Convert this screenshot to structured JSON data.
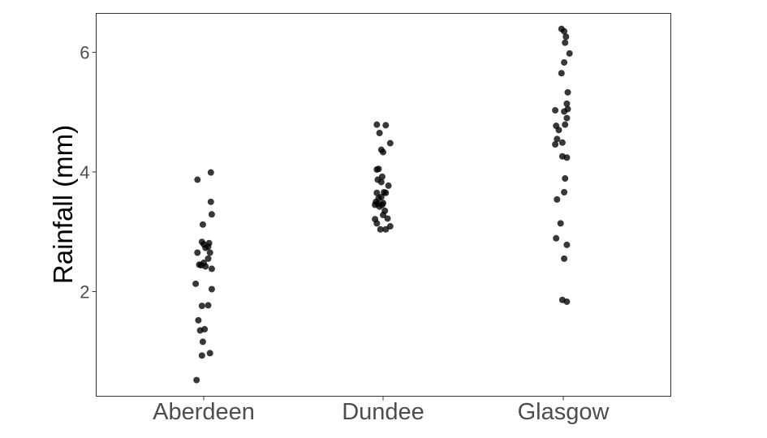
{
  "chart_data": {
    "type": "scatter",
    "title": "",
    "xlabel": "",
    "ylabel": "Rainfall (mm)",
    "ylim": [
      0.25,
      6.65
    ],
    "yticks": [
      2,
      4,
      6
    ],
    "grid": false,
    "point_color": "#000000",
    "point_opacity": 0.78,
    "categories": [
      "Aberdeen",
      "Dundee",
      "Glasgow"
    ],
    "series": [
      {
        "category": "Aberdeen",
        "points": [
          {
            "x": -0.07,
            "y": 3.87
          },
          {
            "x": 0.08,
            "y": 3.99
          },
          {
            "x": 0.08,
            "y": 3.5
          },
          {
            "x": 0.09,
            "y": 3.29
          },
          {
            "x": -0.01,
            "y": 3.12
          },
          {
            "x": -0.02,
            "y": 2.83
          },
          {
            "x": 0.0,
            "y": 2.79
          },
          {
            "x": 0.06,
            "y": 2.81
          },
          {
            "x": 0.02,
            "y": 2.73
          },
          {
            "x": 0.05,
            "y": 2.75
          },
          {
            "x": -0.07,
            "y": 2.65
          },
          {
            "x": 0.07,
            "y": 2.65
          },
          {
            "x": -0.05,
            "y": 2.45
          },
          {
            "x": -0.03,
            "y": 2.44
          },
          {
            "x": 0.0,
            "y": 2.48
          },
          {
            "x": 0.02,
            "y": 2.42
          },
          {
            "x": 0.05,
            "y": 2.55
          },
          {
            "x": 0.09,
            "y": 2.38
          },
          {
            "x": -0.09,
            "y": 2.13
          },
          {
            "x": 0.09,
            "y": 2.04
          },
          {
            "x": -0.02,
            "y": 1.76
          },
          {
            "x": 0.05,
            "y": 1.77
          },
          {
            "x": -0.06,
            "y": 1.52
          },
          {
            "x": -0.04,
            "y": 1.35
          },
          {
            "x": 0.01,
            "y": 1.37
          },
          {
            "x": -0.01,
            "y": 1.16
          },
          {
            "x": 0.07,
            "y": 0.97
          },
          {
            "x": -0.02,
            "y": 0.93
          },
          {
            "x": -0.08,
            "y": 0.52
          }
        ]
      },
      {
        "category": "Dundee",
        "points": [
          {
            "x": -0.07,
            "y": 4.79
          },
          {
            "x": 0.03,
            "y": 4.78
          },
          {
            "x": -0.04,
            "y": 4.65
          },
          {
            "x": 0.08,
            "y": 4.48
          },
          {
            "x": -0.02,
            "y": 4.37
          },
          {
            "x": 0.0,
            "y": 4.33
          },
          {
            "x": -0.07,
            "y": 4.04
          },
          {
            "x": -0.05,
            "y": 4.05
          },
          {
            "x": -0.01,
            "y": 3.92
          },
          {
            "x": -0.06,
            "y": 3.87
          },
          {
            "x": -0.02,
            "y": 3.83
          },
          {
            "x": 0.06,
            "y": 3.77
          },
          {
            "x": -0.07,
            "y": 3.65
          },
          {
            "x": 0.01,
            "y": 3.66
          },
          {
            "x": 0.03,
            "y": 3.65
          },
          {
            "x": -0.05,
            "y": 3.56
          },
          {
            "x": -0.02,
            "y": 3.58
          },
          {
            "x": -0.08,
            "y": 3.5
          },
          {
            "x": -0.06,
            "y": 3.47
          },
          {
            "x": 0.0,
            "y": 3.48
          },
          {
            "x": -0.01,
            "y": 3.45
          },
          {
            "x": -0.09,
            "y": 3.45
          },
          {
            "x": -0.04,
            "y": 3.42
          },
          {
            "x": 0.02,
            "y": 3.35
          },
          {
            "x": 0.0,
            "y": 3.28
          },
          {
            "x": -0.09,
            "y": 3.21
          },
          {
            "x": 0.05,
            "y": 3.22
          },
          {
            "x": -0.07,
            "y": 3.14
          },
          {
            "x": 0.08,
            "y": 3.09
          },
          {
            "x": -0.03,
            "y": 3.04
          },
          {
            "x": 0.03,
            "y": 3.04
          }
        ]
      },
      {
        "category": "Glasgow",
        "points": [
          {
            "x": -0.02,
            "y": 6.39
          },
          {
            "x": 0.01,
            "y": 6.35
          },
          {
            "x": 0.03,
            "y": 6.26
          },
          {
            "x": 0.02,
            "y": 6.16
          },
          {
            "x": 0.07,
            "y": 5.98
          },
          {
            "x": 0.01,
            "y": 5.83
          },
          {
            "x": -0.02,
            "y": 5.65
          },
          {
            "x": 0.05,
            "y": 5.33
          },
          {
            "x": 0.04,
            "y": 5.14
          },
          {
            "x": 0.05,
            "y": 5.05
          },
          {
            "x": -0.09,
            "y": 5.03
          },
          {
            "x": 0.01,
            "y": 5.01
          },
          {
            "x": 0.04,
            "y": 4.9
          },
          {
            "x": -0.08,
            "y": 4.77
          },
          {
            "x": 0.02,
            "y": 4.79
          },
          {
            "x": -0.05,
            "y": 4.7
          },
          {
            "x": -0.07,
            "y": 4.55
          },
          {
            "x": -0.09,
            "y": 4.46
          },
          {
            "x": -0.01,
            "y": 4.49
          },
          {
            "x": -0.01,
            "y": 4.26
          },
          {
            "x": 0.04,
            "y": 4.24
          },
          {
            "x": 0.02,
            "y": 3.89
          },
          {
            "x": 0.01,
            "y": 3.66
          },
          {
            "x": -0.07,
            "y": 3.54
          },
          {
            "x": -0.03,
            "y": 3.14
          },
          {
            "x": -0.08,
            "y": 2.89
          },
          {
            "x": 0.04,
            "y": 2.78
          },
          {
            "x": 0.01,
            "y": 2.55
          },
          {
            "x": -0.01,
            "y": 1.86
          },
          {
            "x": 0.04,
            "y": 1.83
          }
        ]
      }
    ]
  }
}
